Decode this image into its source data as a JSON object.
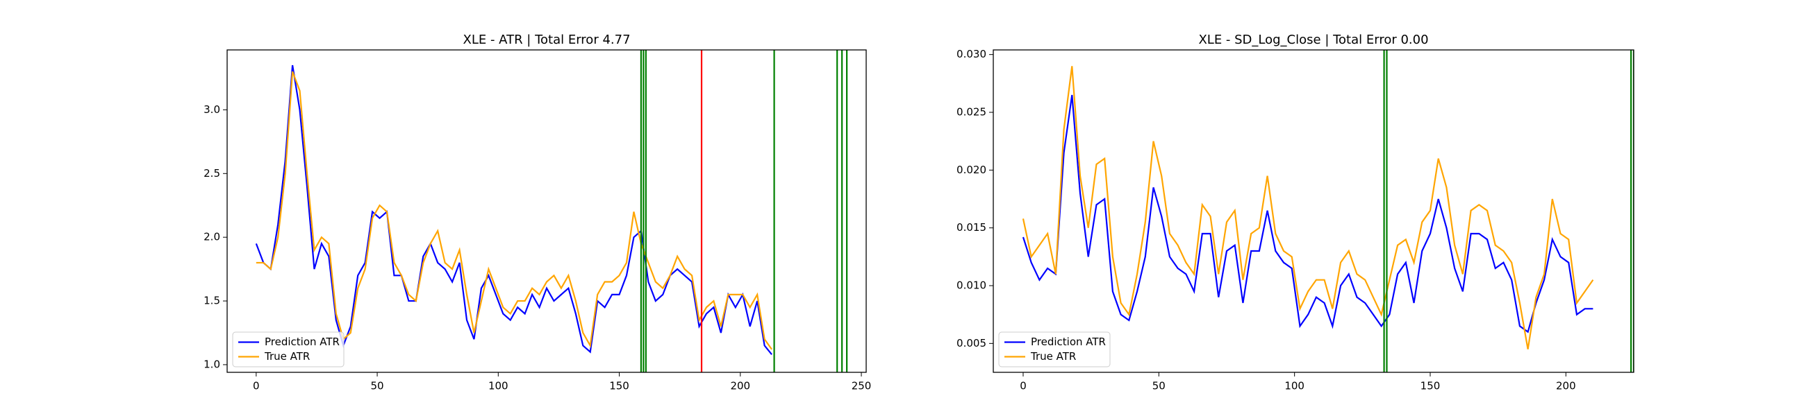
{
  "chart_data": [
    {
      "type": "line",
      "title": "XLE - ATR | Total Error 4.77",
      "x": [
        0,
        3,
        6,
        9,
        12,
        15,
        18,
        21,
        24,
        27,
        30,
        33,
        36,
        39,
        42,
        45,
        48,
        51,
        54,
        57,
        60,
        63,
        66,
        69,
        72,
        75,
        78,
        81,
        84,
        87,
        90,
        93,
        96,
        99,
        102,
        105,
        108,
        111,
        114,
        117,
        120,
        123,
        126,
        129,
        132,
        135,
        138,
        141,
        144,
        147,
        150,
        153,
        156,
        159,
        162,
        165,
        168,
        171,
        174,
        177,
        180,
        183,
        186,
        189,
        192,
        195,
        198,
        201,
        204,
        207,
        210,
        213
      ],
      "series": [
        {
          "name": "Prediction ATR",
          "color": "#0000ff",
          "values": [
            1.95,
            1.8,
            1.75,
            2.1,
            2.6,
            3.35,
            3.0,
            2.4,
            1.75,
            1.95,
            1.85,
            1.35,
            1.15,
            1.3,
            1.7,
            1.8,
            2.2,
            2.15,
            2.2,
            1.7,
            1.7,
            1.5,
            1.5,
            1.85,
            1.95,
            1.8,
            1.75,
            1.65,
            1.8,
            1.35,
            1.2,
            1.6,
            1.7,
            1.55,
            1.4,
            1.35,
            1.45,
            1.4,
            1.55,
            1.45,
            1.6,
            1.5,
            1.55,
            1.6,
            1.4,
            1.15,
            1.1,
            1.5,
            1.45,
            1.55,
            1.55,
            1.7,
            2.0,
            2.05,
            1.65,
            1.5,
            1.55,
            1.7,
            1.75,
            1.7,
            1.65,
            1.3,
            1.4,
            1.45,
            1.25,
            1.55,
            1.45,
            1.55,
            1.3,
            1.5,
            1.15,
            1.08
          ]
        },
        {
          "name": "True ATR",
          "color": "#ffa500",
          "values": [
            1.8,
            1.8,
            1.75,
            2.0,
            2.5,
            3.3,
            3.15,
            2.5,
            1.9,
            2.0,
            1.95,
            1.4,
            1.2,
            1.25,
            1.6,
            1.75,
            2.15,
            2.25,
            2.2,
            1.8,
            1.7,
            1.55,
            1.5,
            1.8,
            1.95,
            2.05,
            1.8,
            1.75,
            1.9,
            1.55,
            1.25,
            1.5,
            1.75,
            1.6,
            1.45,
            1.4,
            1.5,
            1.5,
            1.6,
            1.55,
            1.65,
            1.7,
            1.6,
            1.7,
            1.5,
            1.25,
            1.15,
            1.55,
            1.65,
            1.65,
            1.7,
            1.8,
            2.2,
            1.95,
            1.8,
            1.65,
            1.6,
            1.7,
            1.85,
            1.75,
            1.7,
            1.35,
            1.45,
            1.5,
            1.3,
            1.55,
            1.55,
            1.55,
            1.45,
            1.55,
            1.2,
            1.12
          ]
        }
      ],
      "vlines": [
        {
          "x": 159,
          "color": "#008000"
        },
        {
          "x": 160,
          "color": "#008000"
        },
        {
          "x": 161,
          "color": "#008000"
        },
        {
          "x": 184,
          "color": "#ff0000"
        },
        {
          "x": 214,
          "color": "#008000"
        },
        {
          "x": 240,
          "color": "#008000"
        },
        {
          "x": 242,
          "color": "#008000"
        },
        {
          "x": 244,
          "color": "#008000"
        }
      ],
      "xlim": [
        -12,
        252
      ],
      "xticks": [
        0,
        50,
        100,
        150,
        200,
        250
      ],
      "ylim": [
        0.94,
        3.47
      ],
      "yticks": [
        {
          "value": 1,
          "label": "1.0"
        },
        1.5,
        {
          "value": 2,
          "label": "2.0"
        },
        2.5,
        {
          "value": 3,
          "label": "3.0"
        }
      ],
      "legend": "lower left"
    },
    {
      "type": "line",
      "title": "XLE - SD_Log_Close | Total Error 0.00",
      "x": [
        0,
        3,
        6,
        9,
        12,
        15,
        18,
        21,
        24,
        27,
        30,
        33,
        36,
        39,
        42,
        45,
        48,
        51,
        54,
        57,
        60,
        63,
        66,
        69,
        72,
        75,
        78,
        81,
        84,
        87,
        90,
        93,
        96,
        99,
        102,
        105,
        108,
        111,
        114,
        117,
        120,
        123,
        126,
        129,
        132,
        135,
        138,
        141,
        144,
        147,
        150,
        153,
        156,
        159,
        162,
        165,
        168,
        171,
        174,
        177,
        180,
        183,
        186,
        189,
        192,
        195,
        198,
        201,
        204,
        207,
        210
      ],
      "series": [
        {
          "name": "Prediction ATR",
          "color": "#0000ff",
          "values": [
            0.0142,
            0.012,
            0.0105,
            0.0115,
            0.011,
            0.0215,
            0.0265,
            0.018,
            0.0125,
            0.017,
            0.0175,
            0.0095,
            0.0075,
            0.007,
            0.0095,
            0.0125,
            0.0185,
            0.016,
            0.0125,
            0.0115,
            0.011,
            0.0095,
            0.0145,
            0.0145,
            0.009,
            0.013,
            0.0135,
            0.0085,
            0.013,
            0.013,
            0.0165,
            0.013,
            0.012,
            0.0115,
            0.0065,
            0.0075,
            0.009,
            0.0085,
            0.0065,
            0.01,
            0.011,
            0.009,
            0.0085,
            0.0075,
            0.0065,
            0.0075,
            0.011,
            0.012,
            0.0085,
            0.013,
            0.0145,
            0.0175,
            0.015,
            0.0115,
            0.0095,
            0.0145,
            0.0145,
            0.014,
            0.0115,
            0.012,
            0.0105,
            0.0065,
            0.006,
            0.0085,
            0.0105,
            0.014,
            0.0125,
            0.012,
            0.0075,
            0.008,
            0.008
          ]
        },
        {
          "name": "True ATR",
          "color": "#ffa500",
          "values": [
            0.0158,
            0.0125,
            0.0135,
            0.0145,
            0.011,
            0.0235,
            0.029,
            0.0195,
            0.015,
            0.0205,
            0.021,
            0.0125,
            0.0085,
            0.0075,
            0.011,
            0.0155,
            0.0225,
            0.0195,
            0.0145,
            0.0135,
            0.012,
            0.011,
            0.017,
            0.016,
            0.011,
            0.0155,
            0.0165,
            0.0105,
            0.0145,
            0.015,
            0.0195,
            0.0145,
            0.013,
            0.0125,
            0.008,
            0.0095,
            0.0105,
            0.0105,
            0.008,
            0.012,
            0.013,
            0.011,
            0.0105,
            0.009,
            0.0075,
            0.0105,
            0.0135,
            0.014,
            0.012,
            0.0155,
            0.0165,
            0.021,
            0.0185,
            0.0135,
            0.011,
            0.0165,
            0.017,
            0.0165,
            0.0135,
            0.013,
            0.012,
            0.0085,
            0.0045,
            0.009,
            0.011,
            0.0175,
            0.0145,
            0.014,
            0.0085,
            0.0095,
            0.0105
          ]
        }
      ],
      "vlines": [
        {
          "x": 133,
          "color": "#008000"
        },
        {
          "x": 134,
          "color": "#008000"
        },
        {
          "x": 224,
          "color": "#008000"
        },
        {
          "x": 225,
          "color": "#008000"
        }
      ],
      "xlim": [
        -11,
        225
      ],
      "xticks": [
        0,
        50,
        100,
        150,
        200
      ],
      "ylim": [
        0.0025,
        0.0304
      ],
      "yticks": [
        0.005,
        {
          "value": 0.01,
          "label": "0.010"
        },
        0.015,
        {
          "value": 0.02,
          "label": "0.020"
        },
        0.025,
        {
          "value": 0.03,
          "label": "0.030"
        }
      ],
      "legend": "lower left"
    }
  ]
}
